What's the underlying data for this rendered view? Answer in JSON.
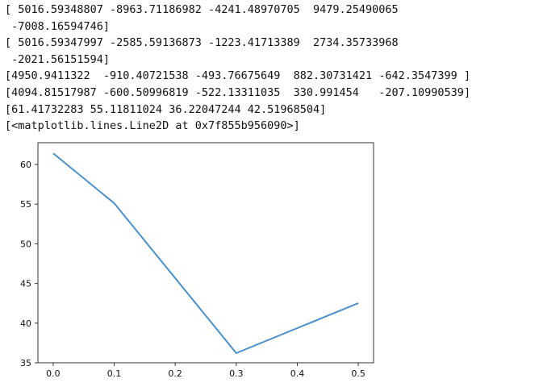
{
  "output_lines": [
    "[ 5016.59348807 -8963.71186982 -4241.48970705  9479.25490065",
    " -7008.16594746]",
    "[ 5016.59347997 -2585.59136873 -1223.41713389  2734.35733968",
    " -2021.56151594]",
    "[4950.9411322  -910.40721538 -493.76675649  882.30731421 -642.3547399 ]",
    "[4094.81517987 -600.50996819 -522.13311035  330.991454   -207.10990539]",
    "[61.41732283 55.11811024 36.22047244 42.51968504]",
    "[<matplotlib.lines.Line2D at 0x7f855b956090>]"
  ],
  "chart_data": {
    "type": "line",
    "x": [
      0.0,
      0.1,
      0.3,
      0.5
    ],
    "series": [
      {
        "values": [
          61.41732283,
          55.11811024,
          36.22047244,
          42.51968504
        ],
        "color": "#4a90c8"
      }
    ],
    "xticks": [
      "0.0",
      "0.1",
      "0.2",
      "0.3",
      "0.4",
      "0.5"
    ],
    "yticks": [
      "35",
      "40",
      "45",
      "50",
      "55",
      "60"
    ],
    "xlim": [
      -0.025,
      0.525
    ],
    "ylim": [
      35.0,
      62.75
    ],
    "grid": false,
    "title": "",
    "xlabel": "",
    "ylabel": ""
  }
}
